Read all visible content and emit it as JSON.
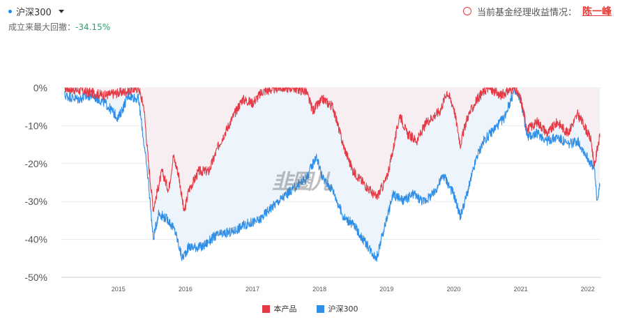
{
  "header": {
    "selector_label": "沪深300",
    "drawdown_label": "成立来最大回撤：",
    "drawdown_value": "-34.15%",
    "manager_prefix": "当前基金经理收益情况：",
    "manager_name": "陈一峰"
  },
  "watermark": {
    "text": "韭圈儿"
  },
  "colors": {
    "product": "#e53945",
    "index": "#2f8fe8",
    "product_fill": "#f7eef1",
    "index_fill": "#eef4fb"
  },
  "chart_data": {
    "type": "line",
    "title": "",
    "xlabel": "",
    "ylabel": "",
    "ylim": [
      -50,
      0
    ],
    "yticks": [
      "0%",
      "-10%",
      "-20%",
      "-30%",
      "-40%",
      "-50%"
    ],
    "xlim": [
      2014.25,
      2022.3
    ],
    "xticks": [
      "2015",
      "2016",
      "2017",
      "2018",
      "2019",
      "2020",
      "2021",
      "2022"
    ],
    "legend_position": "bottom",
    "grid": true,
    "series": [
      {
        "name": "本产品",
        "points": [
          [
            2014.3,
            0
          ],
          [
            2014.6,
            -1
          ],
          [
            2014.9,
            -2
          ],
          [
            2015.2,
            -1
          ],
          [
            2015.4,
            0
          ],
          [
            2015.48,
            -5
          ],
          [
            2015.55,
            -20
          ],
          [
            2015.62,
            -32
          ],
          [
            2015.75,
            -22
          ],
          [
            2015.85,
            -27
          ],
          [
            2015.92,
            -18
          ],
          [
            2016.0,
            -23
          ],
          [
            2016.08,
            -33
          ],
          [
            2016.15,
            -27
          ],
          [
            2016.3,
            -22
          ],
          [
            2016.45,
            -22
          ],
          [
            2016.6,
            -15
          ],
          [
            2016.8,
            -8
          ],
          [
            2016.95,
            -3
          ],
          [
            2017.1,
            -4
          ],
          [
            2017.25,
            -1
          ],
          [
            2017.5,
            0
          ],
          [
            2017.7,
            0
          ],
          [
            2017.9,
            -1
          ],
          [
            2018.0,
            -6
          ],
          [
            2018.15,
            -3
          ],
          [
            2018.3,
            -5
          ],
          [
            2018.45,
            -15
          ],
          [
            2018.6,
            -22
          ],
          [
            2018.8,
            -26
          ],
          [
            2018.95,
            -29
          ],
          [
            2019.1,
            -24
          ],
          [
            2019.2,
            -16
          ],
          [
            2019.3,
            -7
          ],
          [
            2019.4,
            -12
          ],
          [
            2019.55,
            -14
          ],
          [
            2019.7,
            -9
          ],
          [
            2019.9,
            -6
          ],
          [
            2020.0,
            -1
          ],
          [
            2020.1,
            -5
          ],
          [
            2020.2,
            -15
          ],
          [
            2020.3,
            -8
          ],
          [
            2020.45,
            -3
          ],
          [
            2020.6,
            0
          ],
          [
            2020.8,
            -2
          ],
          [
            2021.0,
            0
          ],
          [
            2021.1,
            -3
          ],
          [
            2021.2,
            -11
          ],
          [
            2021.35,
            -9
          ],
          [
            2021.5,
            -12
          ],
          [
            2021.65,
            -9
          ],
          [
            2021.8,
            -12
          ],
          [
            2021.95,
            -7
          ],
          [
            2022.05,
            -10
          ],
          [
            2022.15,
            -14
          ],
          [
            2022.2,
            -21
          ],
          [
            2022.25,
            -15
          ],
          [
            2022.28,
            -13
          ]
        ]
      },
      {
        "name": "沪深300",
        "points": [
          [
            2014.3,
            -2
          ],
          [
            2014.5,
            -3
          ],
          [
            2014.7,
            -2
          ],
          [
            2014.9,
            -4
          ],
          [
            2015.1,
            -8
          ],
          [
            2015.25,
            -2
          ],
          [
            2015.4,
            -3
          ],
          [
            2015.45,
            -10
          ],
          [
            2015.55,
            -25
          ],
          [
            2015.62,
            -40
          ],
          [
            2015.7,
            -33
          ],
          [
            2015.85,
            -35
          ],
          [
            2015.95,
            -38
          ],
          [
            2016.05,
            -45
          ],
          [
            2016.15,
            -42
          ],
          [
            2016.35,
            -42
          ],
          [
            2016.55,
            -39
          ],
          [
            2016.8,
            -38
          ],
          [
            2017.0,
            -36
          ],
          [
            2017.2,
            -35
          ],
          [
            2017.35,
            -32
          ],
          [
            2017.55,
            -29
          ],
          [
            2017.75,
            -26
          ],
          [
            2017.9,
            -24
          ],
          [
            2018.05,
            -18
          ],
          [
            2018.15,
            -24
          ],
          [
            2018.3,
            -27
          ],
          [
            2018.45,
            -34
          ],
          [
            2018.6,
            -36
          ],
          [
            2018.75,
            -40
          ],
          [
            2018.95,
            -45
          ],
          [
            2019.05,
            -38
          ],
          [
            2019.2,
            -28
          ],
          [
            2019.35,
            -30
          ],
          [
            2019.5,
            -28
          ],
          [
            2019.65,
            -30
          ],
          [
            2019.8,
            -28
          ],
          [
            2019.95,
            -23
          ],
          [
            2020.1,
            -28
          ],
          [
            2020.2,
            -34
          ],
          [
            2020.3,
            -28
          ],
          [
            2020.45,
            -18
          ],
          [
            2020.55,
            -14
          ],
          [
            2020.7,
            -11
          ],
          [
            2020.85,
            -8
          ],
          [
            2021.0,
            -1
          ],
          [
            2021.1,
            -3
          ],
          [
            2021.2,
            -13
          ],
          [
            2021.35,
            -12
          ],
          [
            2021.5,
            -14
          ],
          [
            2021.65,
            -13
          ],
          [
            2021.8,
            -15
          ],
          [
            2021.95,
            -14
          ],
          [
            2022.05,
            -17
          ],
          [
            2022.15,
            -20
          ],
          [
            2022.2,
            -22
          ],
          [
            2022.24,
            -30
          ],
          [
            2022.28,
            -26
          ]
        ]
      }
    ]
  }
}
